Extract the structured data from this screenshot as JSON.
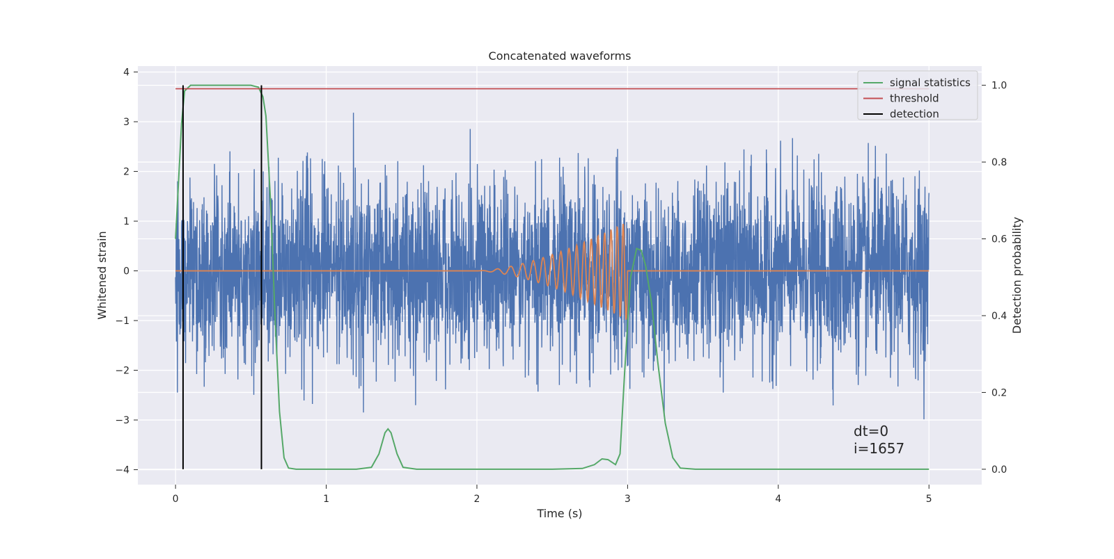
{
  "chart_data": {
    "type": "line",
    "title": "Concatenated waveforms",
    "xlabel": "Time (s)",
    "ylabel_left": "Whitened strain",
    "ylabel_right": "Detection probability",
    "xlim": [
      -0.25,
      5.35
    ],
    "ylim_left": [
      -4.3,
      4.12
    ],
    "ylim_right": [
      -0.04,
      1.05
    ],
    "x_ticks": [
      0,
      1,
      2,
      3,
      4,
      5
    ],
    "x_tick_labels": [
      "0",
      "1",
      "2",
      "3",
      "4",
      "5"
    ],
    "y_left_ticks": [
      -4,
      -3,
      -2,
      -1,
      0,
      1,
      2,
      3,
      4
    ],
    "y_left_tick_labels": [
      "−4",
      "−3",
      "−2",
      "−1",
      "0",
      "1",
      "2",
      "3",
      "4"
    ],
    "y_right_ticks": [
      0.0,
      0.2,
      0.4,
      0.6,
      0.8,
      1.0
    ],
    "y_right_tick_labels": [
      "0.0",
      "0.2",
      "0.4",
      "0.6",
      "0.8",
      "1.0"
    ],
    "grid": true,
    "legend_position": "top-right",
    "series": [
      {
        "name": "",
        "axis": "left",
        "color": "#4c72b0",
        "kind": "noise",
        "x_range": [
          0,
          5
        ],
        "approx_std": 0.9,
        "approx_range": [
          -3.6,
          3.75
        ]
      },
      {
        "name": "",
        "axis": "left",
        "color": "#dd8452",
        "kind": "chirp",
        "x_range": [
          0,
          5
        ],
        "chirp_start": 2.0,
        "chirp_end": 3.0,
        "peak_amplitude": 1.0
      },
      {
        "name": "signal statistics",
        "axis": "right",
        "color": "#55a868",
        "points": [
          [
            0.0,
            0.6
          ],
          [
            0.02,
            0.75
          ],
          [
            0.04,
            0.9
          ],
          [
            0.06,
            0.985
          ],
          [
            0.1,
            1.0
          ],
          [
            0.2,
            1.0
          ],
          [
            0.4,
            1.0
          ],
          [
            0.5,
            1.0
          ],
          [
            0.55,
            0.995
          ],
          [
            0.58,
            0.97
          ],
          [
            0.6,
            0.92
          ],
          [
            0.63,
            0.7
          ],
          [
            0.66,
            0.4
          ],
          [
            0.69,
            0.15
          ],
          [
            0.72,
            0.03
          ],
          [
            0.75,
            0.003
          ],
          [
            0.8,
            0.0
          ],
          [
            1.0,
            0.0
          ],
          [
            1.2,
            0.0
          ],
          [
            1.3,
            0.005
          ],
          [
            1.35,
            0.04
          ],
          [
            1.39,
            0.095
          ],
          [
            1.41,
            0.105
          ],
          [
            1.43,
            0.095
          ],
          [
            1.47,
            0.04
          ],
          [
            1.51,
            0.005
          ],
          [
            1.6,
            0.0
          ],
          [
            2.0,
            0.0
          ],
          [
            2.5,
            0.0
          ],
          [
            2.7,
            0.002
          ],
          [
            2.78,
            0.012
          ],
          [
            2.83,
            0.027
          ],
          [
            2.87,
            0.025
          ],
          [
            2.92,
            0.012
          ],
          [
            2.95,
            0.04
          ],
          [
            2.98,
            0.25
          ],
          [
            3.02,
            0.5
          ],
          [
            3.06,
            0.575
          ],
          [
            3.09,
            0.57
          ],
          [
            3.12,
            0.53
          ],
          [
            3.16,
            0.43
          ],
          [
            3.2,
            0.28
          ],
          [
            3.25,
            0.12
          ],
          [
            3.3,
            0.03
          ],
          [
            3.35,
            0.003
          ],
          [
            3.45,
            0.0
          ],
          [
            4.0,
            0.0
          ],
          [
            5.0,
            0.0
          ]
        ]
      },
      {
        "name": "threshold",
        "axis": "right",
        "color": "#c44e52",
        "points": [
          [
            0.0,
            0.991
          ],
          [
            5.0,
            0.991
          ]
        ]
      },
      {
        "name": "detection",
        "axis": "right",
        "color": "#000000",
        "vlines": [
          0.05,
          0.57
        ],
        "vline_range": [
          0.0,
          1.0
        ]
      }
    ],
    "annotations": [
      "dt=0",
      "i=1657"
    ]
  }
}
